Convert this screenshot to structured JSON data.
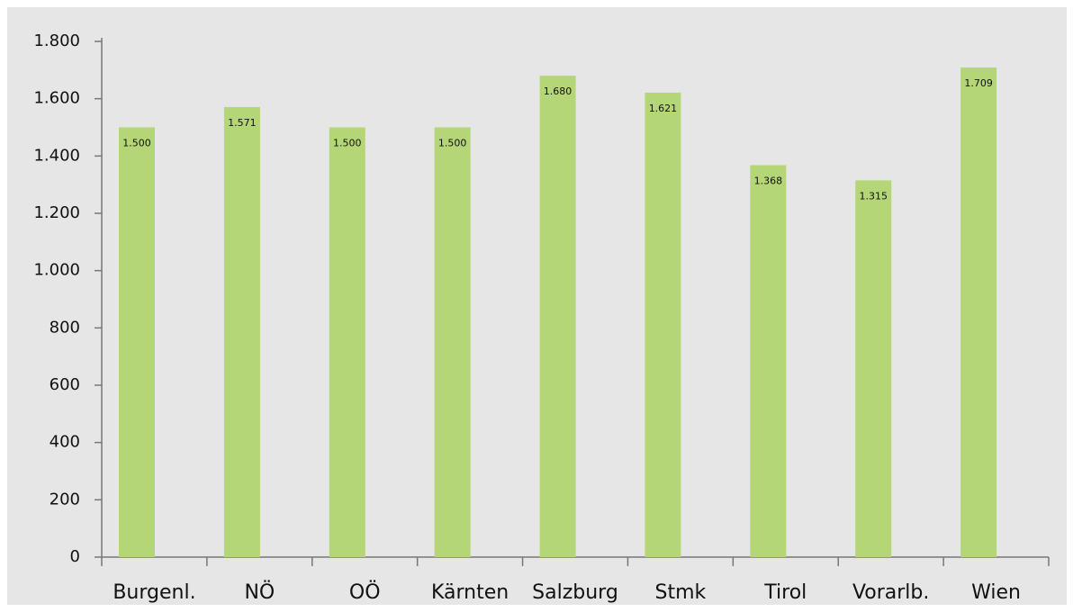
{
  "chart_data": {
    "type": "bar",
    "categories": [
      "Burgenl.",
      "NÖ",
      "OÖ",
      "Kärnten",
      "Salzburg",
      "Stmk",
      "Tirol",
      "Vorarlb.",
      "Wien"
    ],
    "values": [
      1500,
      1571,
      1500,
      1500,
      1680,
      1621,
      1368,
      1315,
      1709
    ],
    "value_labels": [
      "1.500",
      "1.571",
      "1.500",
      "1.500",
      "1.680",
      "1.621",
      "1.368",
      "1.315",
      "1.709"
    ],
    "color": "#b5d676",
    "ylim": [
      0,
      1800
    ],
    "yticks": [
      0,
      200,
      400,
      600,
      800,
      {
        "value": 1000,
        "label": "1.000"
      },
      {
        "value": 1200,
        "label": "1.200"
      },
      {
        "value": 1400,
        "label": "1.400"
      },
      {
        "value": 1600,
        "label": "1.600"
      },
      {
        "value": 1800,
        "label": "1.800"
      }
    ],
    "grid": false
  }
}
